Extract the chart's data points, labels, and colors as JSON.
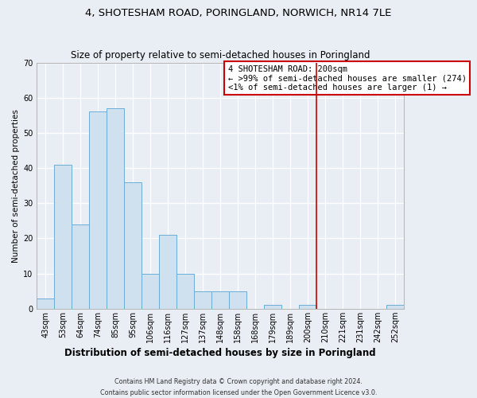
{
  "title": "4, SHOTESHAM ROAD, PORINGLAND, NORWICH, NR14 7LE",
  "subtitle": "Size of property relative to semi-detached houses in Poringland",
  "xlabel": "Distribution of semi-detached houses by size in Poringland",
  "ylabel": "Number of semi-detached properties",
  "bar_labels": [
    "43sqm",
    "53sqm",
    "64sqm",
    "74sqm",
    "85sqm",
    "95sqm",
    "106sqm",
    "116sqm",
    "127sqm",
    "137sqm",
    "148sqm",
    "158sqm",
    "168sqm",
    "179sqm",
    "189sqm",
    "200sqm",
    "210sqm",
    "221sqm",
    "231sqm",
    "242sqm",
    "252sqm"
  ],
  "bar_values": [
    3,
    41,
    24,
    56,
    57,
    36,
    10,
    21,
    10,
    5,
    5,
    5,
    0,
    1,
    0,
    1,
    0,
    0,
    0,
    0,
    1
  ],
  "bar_color": "#cfe0ef",
  "bar_edge_color": "#6aaed6",
  "vline_index": 15,
  "vline_color": "#cc0000",
  "ylim": [
    0,
    70
  ],
  "yticks": [
    0,
    10,
    20,
    30,
    40,
    50,
    60,
    70
  ],
  "annotation_title": "4 SHOTESHAM ROAD: 200sqm",
  "annotation_line1": "← >99% of semi-detached houses are smaller (274)",
  "annotation_line2": "<1% of semi-detached houses are larger (1) →",
  "footer_line1": "Contains HM Land Registry data © Crown copyright and database right 2024.",
  "footer_line2": "Contains public sector information licensed under the Open Government Licence v3.0.",
  "background_color": "#e8eef4",
  "plot_bg_color": "#e8eef4",
  "annotation_box_color": "#ffffff",
  "annotation_box_edge": "#cc0000",
  "grid_color": "#ffffff",
  "title_fontsize": 9.5,
  "subtitle_fontsize": 8.5,
  "xlabel_fontsize": 8.5,
  "ylabel_fontsize": 7.5,
  "tick_fontsize": 7.0,
  "annotation_fontsize": 7.5
}
